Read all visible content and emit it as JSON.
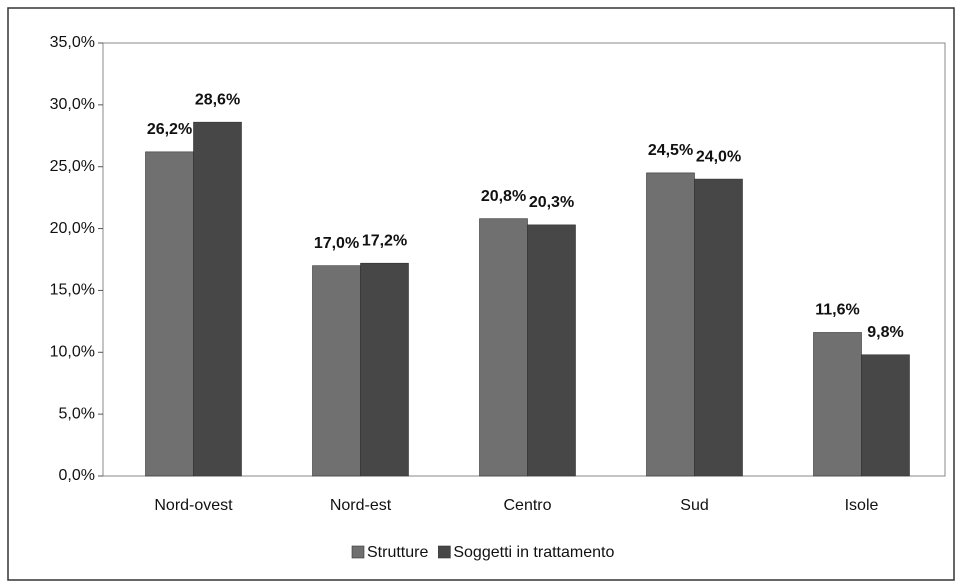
{
  "chart_data": {
    "type": "bar",
    "categories": [
      "Nord-ovest",
      "Nord-est",
      "Centro",
      "Sud",
      "Isole"
    ],
    "series": [
      {
        "name": "Strutture",
        "color": "#707070",
        "values": [
          26.2,
          17.0,
          20.8,
          24.5,
          11.6
        ],
        "value_labels": [
          "26,2%",
          "17,0%",
          "20,8%",
          "24,5%",
          "11,6%"
        ]
      },
      {
        "name": "Soggetti in trattamento",
        "color": "#474747",
        "values": [
          28.6,
          17.2,
          20.3,
          24.0,
          9.8
        ],
        "value_labels": [
          "28,6%",
          "17,2%",
          "20,3%",
          "24,0%",
          "9,8%"
        ]
      }
    ],
    "ylim": [
      0,
      35
    ],
    "yticks": [
      {
        "value": 0,
        "label": "0,0%"
      },
      {
        "value": 5,
        "label": "5,0%"
      },
      {
        "value": 10,
        "label": "10,0%"
      },
      {
        "value": 15,
        "label": "15,0%"
      },
      {
        "value": 20,
        "label": "20,0%"
      },
      {
        "value": 25,
        "label": "25,0%"
      },
      {
        "value": 30,
        "label": "30,0%"
      },
      {
        "value": 35,
        "label": "35,0%"
      }
    ],
    "grid": false,
    "legend": "bottom"
  }
}
